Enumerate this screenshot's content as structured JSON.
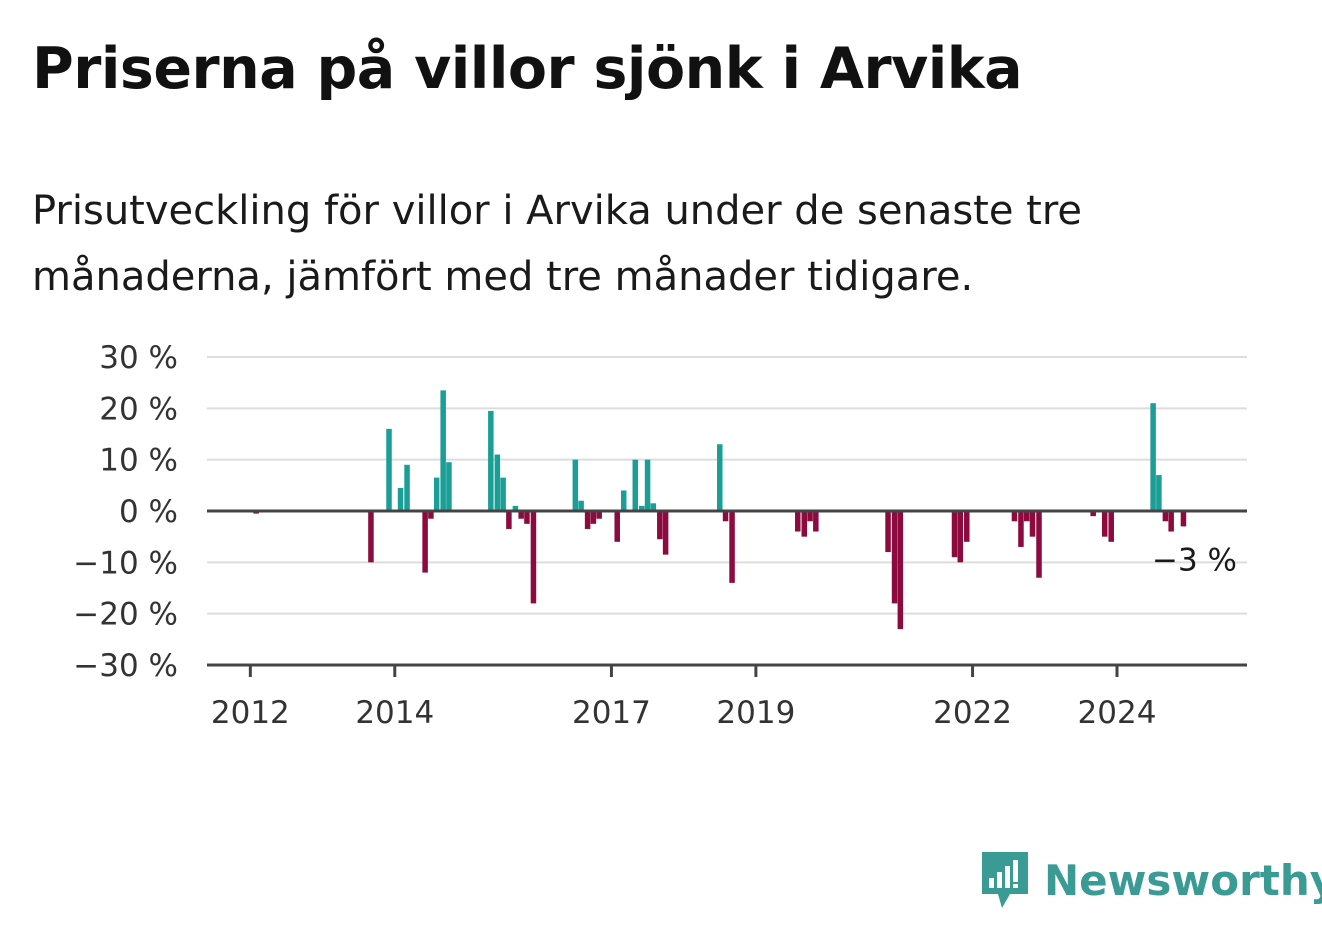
{
  "title": "Priserna på villor sjönk i Arvika",
  "subtitle": "Prisutveckling för villor i Arvika under de senaste tre månaderna, jämfört med tre månader tidigare.",
  "brand": {
    "name": "Newsworthy",
    "color": "#3a9a94",
    "icon": "newsworthy-logo-icon"
  },
  "colors": {
    "positive": "#1a9e96",
    "negative": "#8c0a3e",
    "grid": "#dddddd",
    "axis": "#444444"
  },
  "chart_data": {
    "type": "bar",
    "title": "Priserna på villor sjönk i Arvika",
    "ylabel": "",
    "xlabel": "",
    "ylim": [
      -30,
      30
    ],
    "xlim": [
      2011.4,
      2025.8
    ],
    "y_ticks": [
      30,
      20,
      10,
      0,
      -10,
      -20,
      -30
    ],
    "y_tick_labels": [
      "30 %",
      "20 %",
      "10 %",
      "0 %",
      "−10 %",
      "−20 %",
      "−30 %"
    ],
    "x_ticks": [
      2012,
      2014,
      2017,
      2019,
      2022,
      2024
    ],
    "x_tick_labels": [
      "2012",
      "2014",
      "2017",
      "2019",
      "2022",
      "2024"
    ],
    "grid": true,
    "annotation": "−3 %",
    "x": [
      2012.08,
      2013.67,
      2013.92,
      2014.08,
      2014.17,
      2014.42,
      2014.5,
      2014.58,
      2014.67,
      2014.75,
      2015.33,
      2015.42,
      2015.5,
      2015.58,
      2015.67,
      2015.75,
      2015.83,
      2015.92,
      2016.5,
      2016.58,
      2016.67,
      2016.75,
      2016.83,
      2017.08,
      2017.17,
      2017.33,
      2017.42,
      2017.5,
      2017.58,
      2017.67,
      2017.75,
      2018.5,
      2018.58,
      2018.67,
      2019.58,
      2019.67,
      2019.75,
      2019.83,
      2020.83,
      2020.92,
      2021.0,
      2021.75,
      2021.83,
      2021.92,
      2022.58,
      2022.67,
      2022.75,
      2022.83,
      2022.92,
      2023.67,
      2023.83,
      2023.92,
      2024.5,
      2024.58,
      2024.67,
      2024.75,
      2024.92
    ],
    "values": [
      -0.5,
      -10,
      16,
      4.5,
      9,
      -12,
      -1.5,
      6.5,
      23.5,
      9.5,
      19.5,
      11,
      6.5,
      -3.5,
      1,
      -1.5,
      -2.5,
      -18,
      10,
      2,
      -3.5,
      -2.5,
      -1.5,
      -6,
      4,
      10,
      1,
      10,
      1.5,
      -5.5,
      -8.5,
      13,
      -2,
      -14,
      -4,
      -5,
      -2,
      -4,
      -8,
      -18,
      -23,
      -9,
      -10,
      -6,
      -2,
      -7,
      -2,
      -5,
      -13,
      -1,
      -5,
      -6,
      21,
      7,
      -2,
      -4,
      -3
    ]
  }
}
